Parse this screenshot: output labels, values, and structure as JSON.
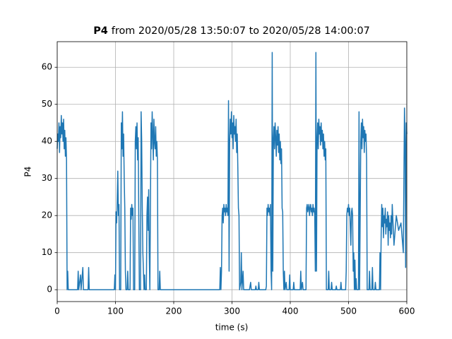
{
  "chart_data": {
    "type": "line",
    "title": [
      "P4",
      "from 2020/05/28 13:50:07 to 2020/05/28 14:00:07"
    ],
    "xlabel": "time (s)",
    "ylabel": "P4",
    "xlim": [
      0,
      600
    ],
    "ylim": [
      -3.2,
      66.9
    ],
    "xticks": [
      0,
      100,
      200,
      300,
      400,
      500,
      600
    ],
    "yticks": [
      0,
      10,
      20,
      30,
      40,
      50,
      60
    ],
    "grid": true,
    "color": "#1f77b4",
    "x": [
      0,
      1,
      2,
      3,
      4,
      5,
      6,
      7,
      8,
      9,
      10,
      11,
      12,
      13,
      14,
      15,
      16,
      17,
      18,
      19,
      20,
      35,
      36,
      37,
      40,
      41,
      44,
      45,
      53,
      54,
      55,
      98,
      99,
      100,
      101,
      102,
      103,
      104,
      105,
      106,
      107,
      109,
      110,
      111,
      112,
      113,
      114,
      115,
      116,
      117,
      118,
      120,
      121,
      122,
      125,
      126,
      127,
      128,
      129,
      130,
      131,
      133,
      134,
      135,
      136,
      137,
      138,
      139,
      140,
      141,
      143,
      144,
      145,
      146,
      147,
      148,
      149,
      150,
      151,
      153,
      154,
      155,
      156,
      157,
      158,
      159,
      161,
      162,
      163,
      164,
      165,
      166,
      167,
      168,
      169,
      170,
      171,
      172,
      173,
      175,
      176,
      177,
      279,
      280,
      281,
      282,
      283,
      284,
      285,
      286,
      287,
      288,
      289,
      290,
      291,
      292,
      293,
      294,
      295,
      296,
      297,
      298,
      299,
      300,
      301,
      302,
      303,
      304,
      305,
      306,
      307,
      308,
      309,
      310,
      311,
      312,
      313,
      315,
      316,
      317,
      319,
      320,
      330,
      332,
      333,
      340,
      341,
      342,
      345,
      346,
      347,
      358,
      359,
      360,
      361,
      362,
      363,
      364,
      365,
      366,
      367,
      368,
      369,
      370,
      371,
      372,
      373,
      374,
      375,
      376,
      377,
      378,
      379,
      380,
      381,
      382,
      383,
      384,
      385,
      386,
      387,
      388,
      389,
      390,
      391,
      393,
      394,
      398,
      399,
      400,
      405,
      406,
      407,
      417,
      418,
      419,
      421,
      422,
      427,
      428,
      429,
      430,
      431,
      432,
      433,
      434,
      435,
      436,
      437,
      438,
      439,
      440,
      441,
      442,
      443,
      444,
      445,
      446,
      447,
      448,
      449,
      450,
      451,
      452,
      453,
      454,
      455,
      456,
      457,
      458,
      459,
      460,
      461,
      462,
      465,
      466,
      467,
      470,
      471,
      472,
      478,
      479,
      480,
      486,
      487,
      488,
      495,
      496,
      497,
      498,
      499,
      500,
      501,
      502,
      503,
      504,
      505,
      506,
      507,
      508,
      509,
      510,
      511,
      512,
      513,
      514,
      517,
      518,
      519,
      521,
      522,
      523,
      524,
      525,
      526,
      527,
      528,
      529,
      530,
      531,
      532,
      535,
      536,
      537,
      540,
      541,
      542,
      545,
      546,
      547,
      553,
      554,
      555,
      556,
      557,
      558,
      559,
      560,
      561,
      562,
      563,
      564,
      565,
      566,
      567,
      568,
      569,
      570,
      571,
      572,
      573,
      574,
      575,
      578,
      582,
      586,
      590,
      594,
      596,
      597,
      598,
      599,
      600
    ],
    "values": [
      38,
      42,
      40,
      45,
      37,
      44,
      41,
      47,
      42,
      45,
      40,
      46,
      38,
      43,
      36,
      41,
      35,
      0,
      5,
      0,
      0,
      0,
      5,
      0,
      4,
      0,
      6,
      0,
      0,
      6,
      0,
      0,
      4,
      0,
      21,
      18,
      24,
      32,
      20,
      23,
      0,
      0,
      45,
      38,
      48,
      36,
      42,
      30,
      22,
      5,
      0,
      0,
      5,
      0,
      0,
      22,
      19,
      23,
      20,
      22,
      0,
      0,
      40,
      44,
      38,
      45,
      35,
      41,
      20,
      0,
      0,
      48,
      40,
      22,
      10,
      5,
      0,
      4,
      0,
      0,
      20,
      25,
      16,
      27,
      10,
      0,
      45,
      38,
      48,
      42,
      35,
      46,
      40,
      38,
      44,
      36,
      40,
      35,
      0,
      0,
      5,
      0,
      0,
      6,
      0,
      5,
      20,
      22,
      18,
      23,
      21,
      22,
      20,
      23,
      21,
      22,
      20,
      51,
      5,
      40,
      46,
      42,
      48,
      41,
      45,
      38,
      47,
      42,
      44,
      40,
      46,
      37,
      42,
      33,
      22,
      20,
      0,
      2,
      10,
      0,
      5,
      0,
      0,
      2,
      0,
      0,
      1,
      0,
      0,
      2,
      0,
      0,
      1,
      22,
      20,
      23,
      21,
      22,
      20,
      23,
      5,
      0,
      64,
      5,
      40,
      44,
      38,
      45,
      41,
      36,
      43,
      39,
      44,
      37,
      42,
      35,
      40,
      34,
      38,
      22,
      21,
      5,
      0,
      5,
      0,
      2,
      0,
      0,
      4,
      0,
      0,
      2,
      0,
      0,
      5,
      0,
      2,
      0,
      0,
      22,
      23,
      21,
      22,
      23,
      20,
      22,
      23,
      21,
      22,
      20,
      23,
      21,
      22,
      20,
      5,
      64,
      5,
      40,
      45,
      38,
      46,
      42,
      44,
      39,
      45,
      40,
      43,
      38,
      42,
      36,
      40,
      35,
      38,
      0,
      0,
      5,
      0,
      0,
      2,
      0,
      0,
      1,
      0,
      0,
      2,
      0,
      0,
      5,
      20,
      22,
      21,
      23,
      20,
      22,
      17,
      12,
      21,
      22,
      20,
      5,
      10,
      0,
      8,
      0,
      3,
      0,
      0,
      48,
      0,
      40,
      45,
      38,
      46,
      41,
      44,
      37,
      43,
      40,
      42,
      35,
      0,
      0,
      5,
      0,
      0,
      6,
      0,
      0,
      2,
      0,
      0,
      10,
      0,
      15,
      23,
      17,
      22,
      14,
      20,
      18,
      22,
      15,
      19,
      17,
      21,
      12,
      20,
      16,
      18,
      14,
      20,
      15,
      23,
      12,
      20,
      16,
      18,
      10,
      49,
      40,
      6,
      45,
      42
    ]
  }
}
